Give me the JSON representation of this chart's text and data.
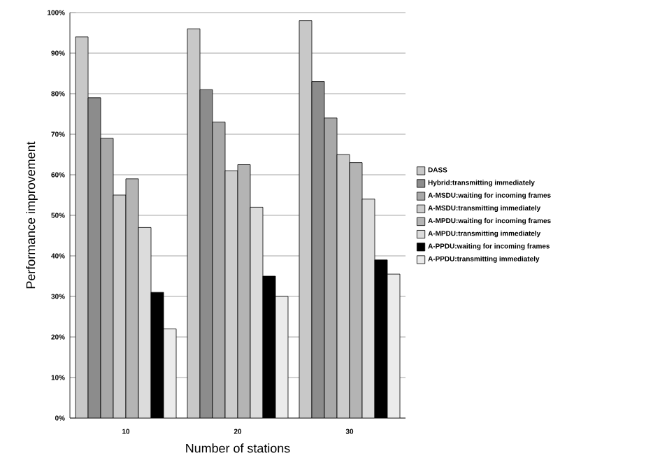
{
  "chart_data": {
    "type": "bar",
    "xlabel": "Number of stations",
    "ylabel": "Performance improvement",
    "categories": [
      "10",
      "20",
      "30"
    ],
    "series": [
      {
        "name": "DASS",
        "color": "#c8c8c8",
        "values": [
          94,
          96,
          98
        ]
      },
      {
        "name": "Hybrid:transmitting immediately",
        "color": "#8c8c8c",
        "values": [
          79,
          81,
          83
        ]
      },
      {
        "name": "A-MSDU:waiting for incoming frames",
        "color": "#a8a8a8",
        "values": [
          69,
          73,
          74
        ]
      },
      {
        "name": "A-MSDU:transmitting immediately",
        "color": "#cccccc",
        "values": [
          55,
          61,
          65
        ]
      },
      {
        "name": "A-MPDU:waiting for incoming frames",
        "color": "#b4b4b4",
        "values": [
          59,
          62.5,
          63
        ]
      },
      {
        "name": "A-MPDU:transmitting immediately",
        "color": "#dcdcdc",
        "values": [
          47,
          52,
          54
        ]
      },
      {
        "name": "A-PPDU:waiting for incoming frames",
        "color": "#000000",
        "values": [
          31,
          35,
          39
        ]
      },
      {
        "name": "A-PPDU:transmitting immediately",
        "color": "#ebebeb",
        "values": [
          22,
          30,
          35.5
        ]
      }
    ],
    "ylim": [
      0,
      100
    ],
    "yticks": [
      {
        "value": 0,
        "label": "0%"
      },
      {
        "value": 10,
        "label": "10%"
      },
      {
        "value": 20,
        "label": "20%"
      },
      {
        "value": 30,
        "label": "30%"
      },
      {
        "value": 40,
        "label": "40%"
      },
      {
        "value": 50,
        "label": "50%"
      },
      {
        "value": 60,
        "label": "60%"
      },
      {
        "value": 70,
        "label": "70%"
      },
      {
        "value": 80,
        "label": "80%"
      },
      {
        "value": 90,
        "label": "90%"
      },
      {
        "value": 100,
        "label": "100%"
      }
    ],
    "grid": "y",
    "legend": "right"
  }
}
